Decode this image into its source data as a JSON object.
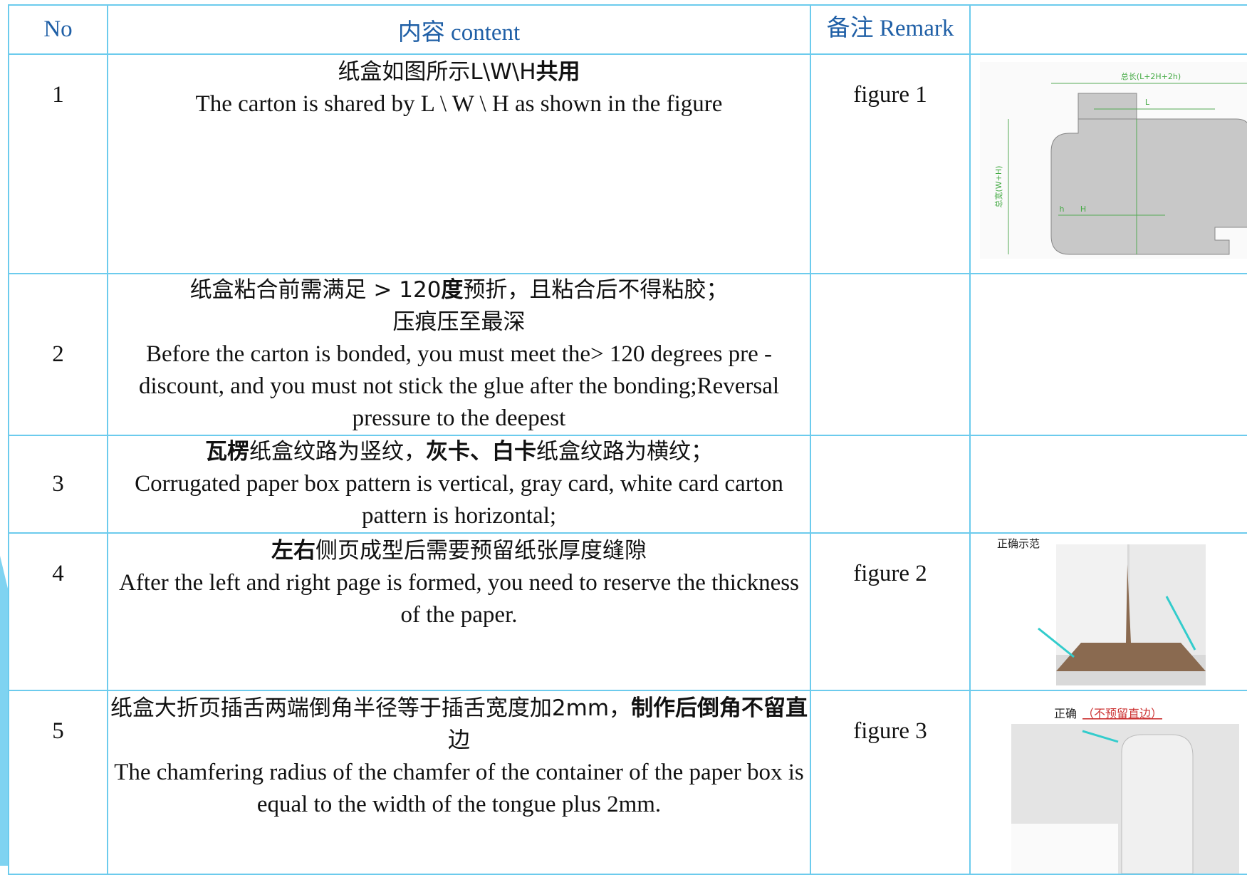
{
  "table": {
    "header": [
      "No",
      "内容 content",
      "备注 Remark"
    ],
    "rows": [
      {
        "no": "1",
        "content": [
          [
            "纸盒如图所示L\\W\\H",
            {
              "text": "共用",
              "bold": true
            }
          ],
          [
            "The carton is shared by L \\ W \\ H as shown in the figure"
          ]
        ],
        "remark": "figure 1",
        "figure_labels": [
          "总长(L+2H+2h)",
          "L",
          "h",
          "H",
          "总宽(W+H)"
        ]
      },
      {
        "no": "2",
        "content": [
          [
            "纸盒粘合前需满足 > 120",
            {
              "text": "度",
              "bold": true
            },
            "预折，且粘合后不得粘胶；"
          ],
          [
            "压痕压至最深"
          ],
          [
            "Before the carton is bonded, you must meet the> 120 degrees pre -discount, and you must not stick the glue after the bonding;Reversal pressure to the deepest"
          ]
        ]
      },
      {
        "no": "3",
        "content": [
          [
            {
              "text": "瓦楞",
              "bold": true
            },
            "纸盒纹路为竖纹，",
            {
              "text": "灰卡、白卡",
              "bold": true
            },
            "纸盒纹路为横纹；"
          ],
          [
            "Corrugated paper box pattern is vertical, gray card, white card carton pattern is horizontal;"
          ]
        ]
      },
      {
        "no": "4",
        "content": [
          [
            {
              "text": "左右",
              "bold": true
            },
            "侧页成型后需要预留纸张厚度缝隙"
          ],
          [
            "After the left and right page is formed, you need to reserve the thickness of the paper."
          ]
        ],
        "remark": "figure 2",
        "figure_labels": [
          "正确示范"
        ]
      },
      {
        "no": "5",
        "content": [
          [
            "纸盒大折页插舌两端倒角半径等于插舌宽度加2mm，",
            {
              "text": "制作后倒角不留直",
              "bold": true
            },
            "边"
          ],
          [
            "The chamfering radius of the chamfer of the container of the paper box is equal to the width of the tongue plus 2mm."
          ]
        ],
        "remark": "figure 3",
        "figure_labels": [
          "正确",
          "（不预留直边）"
        ]
      }
    ]
  }
}
